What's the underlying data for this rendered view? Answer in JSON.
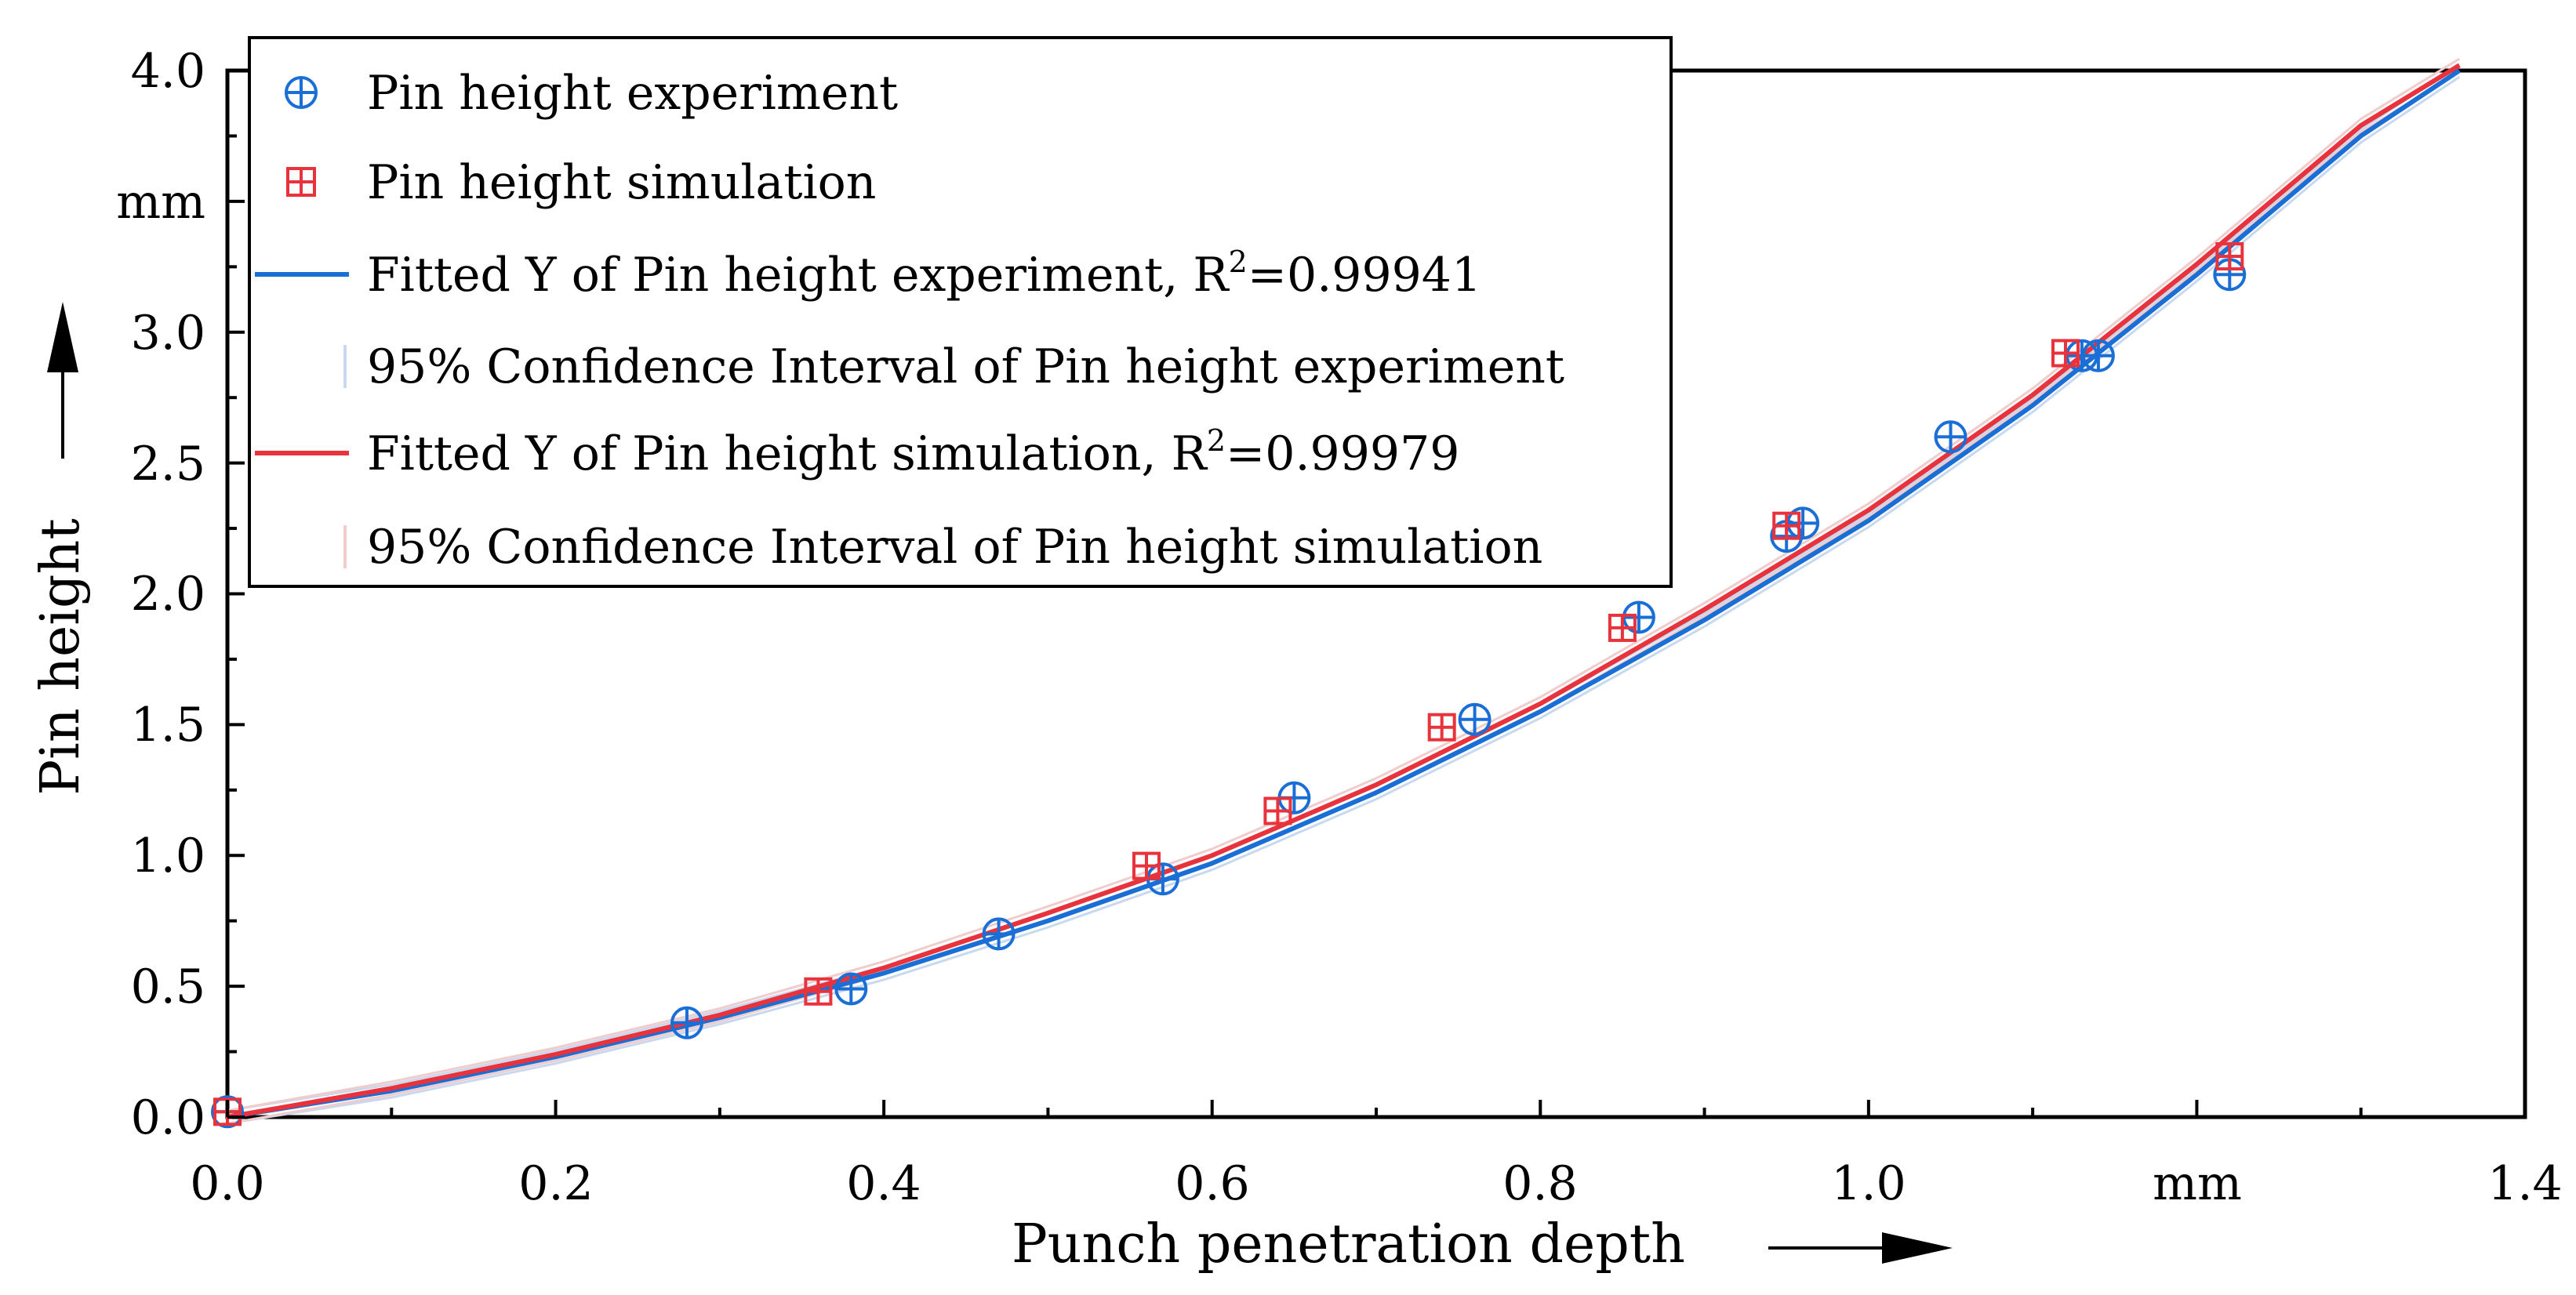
{
  "chart_data": {
    "type": "scatter",
    "xlabel": "Punch penetration depth",
    "ylabel": "Pin height",
    "x_unit": "mm",
    "y_unit": "mm",
    "xlim": [
      0.0,
      1.4
    ],
    "ylim": [
      0.0,
      4.0
    ],
    "x_ticks": [
      "0.0",
      "0.2",
      "0.4",
      "0.6",
      "0.8",
      "1.0",
      "1.4"
    ],
    "y_ticks": [
      "0.0",
      "0.5",
      "1.0",
      "1.5",
      "2.0",
      "2.5",
      "3.0",
      "4.0"
    ],
    "legend_position": "top-left",
    "series": [
      {
        "name": "Pin height experiment",
        "kind": "scatter",
        "marker": "circle-plus",
        "color": "#1a6fd6",
        "x": [
          0.0,
          0.28,
          0.38,
          0.47,
          0.57,
          0.65,
          0.76,
          0.86,
          0.95,
          0.96,
          1.05,
          1.13,
          1.14,
          1.22
        ],
        "y": [
          0.02,
          0.36,
          0.49,
          0.7,
          0.91,
          1.22,
          1.52,
          1.91,
          2.22,
          2.27,
          2.6,
          2.91,
          2.91,
          3.22
        ]
      },
      {
        "name": "Pin height simulation",
        "kind": "scatter",
        "marker": "square-plus",
        "color": "#e8323c",
        "x": [
          0.0,
          0.36,
          0.56,
          0.64,
          0.74,
          0.85,
          0.95,
          1.12,
          1.22
        ],
        "y": [
          0.02,
          0.48,
          0.96,
          1.17,
          1.49,
          1.87,
          2.26,
          2.92,
          3.29
        ]
      },
      {
        "name": "Fitted Y of Pin height experiment, R",
        "r2_exp": "2",
        "r2_value": "=0.99941",
        "kind": "line",
        "color": "#1a6fd6",
        "x": [
          0.0,
          0.1,
          0.2,
          0.3,
          0.4,
          0.5,
          0.6,
          0.7,
          0.8,
          0.9,
          1.0,
          1.1,
          1.2,
          1.3,
          1.36
        ],
        "y": [
          0.0,
          0.1,
          0.23,
          0.38,
          0.55,
          0.75,
          0.97,
          1.24,
          1.55,
          1.9,
          2.28,
          2.72,
          3.22,
          3.75,
          4.0
        ]
      },
      {
        "name": "95% Confidence Interval of Pin height experiment",
        "kind": "band",
        "color": "#c8d8ee"
      },
      {
        "name": "Fitted Y of Pin height simulation, R",
        "r2_exp": "2",
        "r2_value": "=0.99979",
        "kind": "line",
        "color": "#e8323c",
        "x": [
          0.0,
          0.1,
          0.2,
          0.3,
          0.4,
          0.5,
          0.6,
          0.7,
          0.8,
          0.9,
          1.0,
          1.1,
          1.2,
          1.3,
          1.36
        ],
        "y": [
          0.0,
          0.11,
          0.24,
          0.39,
          0.57,
          0.78,
          1.0,
          1.27,
          1.58,
          1.94,
          2.32,
          2.76,
          3.26,
          3.79,
          4.02
        ]
      },
      {
        "name": "95% Confidence Interval of Pin height simulation",
        "kind": "band",
        "color": "#f0cccc"
      }
    ]
  }
}
